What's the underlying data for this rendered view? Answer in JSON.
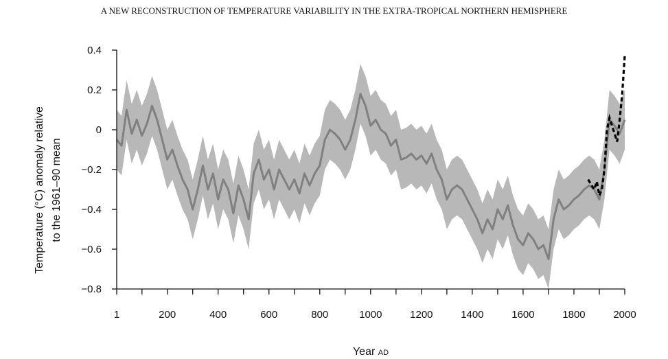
{
  "title": "A NEW RECONSTRUCTION OF TEMPERATURE VARIABILITY IN THE EXTRA-TROPICAL NORTHERN HEMISPHERE",
  "chart_data": {
    "type": "line",
    "xlabel": "Year",
    "xlabel_suffix": "AD",
    "ylabel_line1": "Temperature (°C) anomaly relative",
    "ylabel_line2": "to the 1961–90 mean",
    "xlim": [
      1,
      2000
    ],
    "ylim": [
      -0.8,
      0.4
    ],
    "x_ticks": [
      1,
      200,
      400,
      600,
      800,
      1000,
      1200,
      1400,
      1600,
      1800,
      2000
    ],
    "x_tick_labels": [
      "1",
      "200",
      "400",
      "600",
      "800",
      "1000",
      "1200",
      "1400",
      "1600",
      "1800",
      "2000"
    ],
    "y_ticks": [
      0.4,
      0.2,
      0,
      -0.2,
      -0.4,
      -0.6,
      -0.8
    ],
    "y_tick_labels": [
      "0.4",
      "0.2",
      "0",
      "−0.2",
      "−0.4",
      "−0.6",
      "−0.8"
    ],
    "grid": false,
    "colors": {
      "reconstruction": "#808080",
      "uncertainty_band": "#b8b8b8",
      "instrumental": "#000000"
    },
    "series": [
      {
        "style": "solid",
        "x": [
          1,
          20,
          40,
          60,
          80,
          100,
          120,
          140,
          160,
          180,
          200,
          220,
          240,
          260,
          280,
          300,
          320,
          340,
          360,
          380,
          400,
          420,
          440,
          460,
          480,
          500,
          520,
          540,
          560,
          580,
          600,
          620,
          640,
          660,
          680,
          700,
          720,
          740,
          760,
          780,
          800,
          820,
          840,
          860,
          880,
          900,
          920,
          940,
          960,
          980,
          1000,
          1020,
          1040,
          1060,
          1080,
          1100,
          1120,
          1140,
          1160,
          1180,
          1200,
          1220,
          1240,
          1260,
          1280,
          1300,
          1320,
          1340,
          1360,
          1380,
          1400,
          1420,
          1440,
          1460,
          1480,
          1500,
          1520,
          1540,
          1560,
          1580,
          1600,
          1620,
          1640,
          1660,
          1680,
          1700,
          1720,
          1740,
          1760,
          1780,
          1800,
          1820,
          1840,
          1860,
          1880,
          1900,
          1920,
          1940,
          1960,
          1980,
          2000
        ],
        "y": [
          -0.05,
          -0.08,
          0.1,
          -0.02,
          0.05,
          -0.03,
          0.03,
          0.12,
          0.05,
          -0.05,
          -0.15,
          -0.1,
          -0.18,
          -0.25,
          -0.3,
          -0.4,
          -0.3,
          -0.18,
          -0.3,
          -0.22,
          -0.35,
          -0.25,
          -0.3,
          -0.42,
          -0.28,
          -0.35,
          -0.45,
          -0.22,
          -0.15,
          -0.25,
          -0.2,
          -0.3,
          -0.2,
          -0.25,
          -0.3,
          -0.25,
          -0.32,
          -0.22,
          -0.28,
          -0.22,
          -0.18,
          -0.05,
          0.0,
          -0.02,
          -0.05,
          -0.1,
          -0.05,
          0.05,
          0.18,
          0.12,
          0.02,
          0.05,
          0.0,
          -0.02,
          -0.08,
          -0.05,
          -0.15,
          -0.14,
          -0.12,
          -0.15,
          -0.13,
          -0.17,
          -0.12,
          -0.2,
          -0.25,
          -0.35,
          -0.3,
          -0.28,
          -0.3,
          -0.35,
          -0.4,
          -0.45,
          -0.52,
          -0.45,
          -0.5,
          -0.4,
          -0.45,
          -0.38,
          -0.48,
          -0.55,
          -0.58,
          -0.52,
          -0.55,
          -0.6,
          -0.58,
          -0.65,
          -0.45,
          -0.35,
          -0.4,
          -0.38,
          -0.35,
          -0.33,
          -0.3,
          -0.28,
          -0.3,
          -0.35,
          -0.2,
          0.05,
          0.02,
          -0.02,
          0.05
        ],
        "band_half_width": 0.15
      },
      {
        "style": "dashed",
        "x": [
          1856,
          1870,
          1880,
          1890,
          1900,
          1910,
          1920,
          1930,
          1940,
          1950,
          1960,
          1970,
          1980,
          1990,
          2000
        ],
        "y": [
          -0.25,
          -0.28,
          -0.3,
          -0.26,
          -0.33,
          -0.3,
          -0.2,
          0.0,
          0.06,
          0.02,
          -0.02,
          -0.06,
          0.05,
          0.18,
          0.37
        ]
      }
    ]
  }
}
